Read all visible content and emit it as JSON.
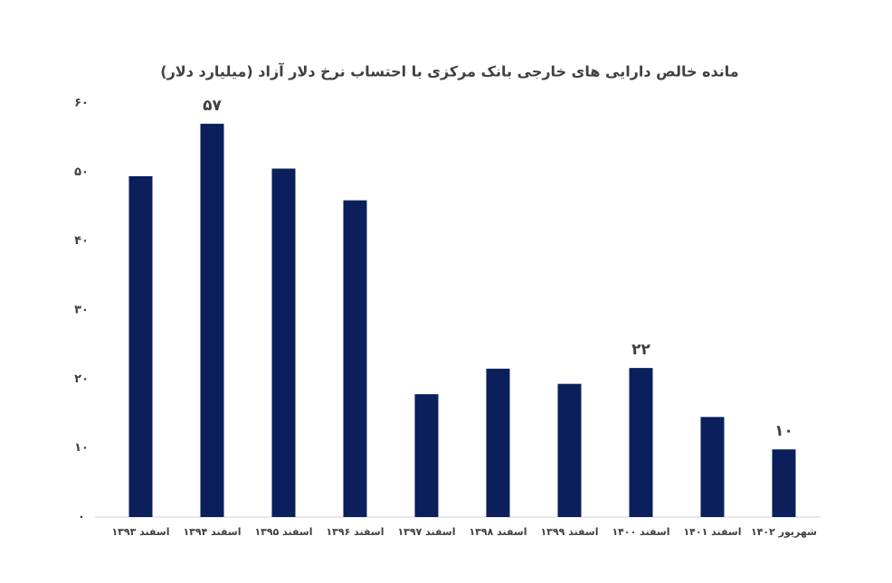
{
  "chart_data": {
    "type": "bar",
    "title": "مانده خالص دارایی های خارجی بانک مرکزی با احتساب نرخ دلار آزاد (میلیارد دلار)",
    "categories": [
      "اسفند ۱۳۹۳",
      "اسفند ۱۳۹۴",
      "اسفند ۱۳۹۵",
      "اسفند ۱۳۹۶",
      "اسفند ۱۳۹۷",
      "اسفند ۱۳۹۸",
      "اسفند ۱۳۹۹",
      "اسفند ۱۴۰۰",
      "اسفند ۱۴۰۱",
      "شهریور ۱۴۰۲"
    ],
    "values": [
      49.4,
      57,
      50.5,
      45.9,
      17.8,
      21.5,
      19.3,
      21.6,
      14.5,
      9.8
    ],
    "value_labels": [
      null,
      "۵۷",
      null,
      null,
      null,
      null,
      null,
      "۲۲",
      null,
      "۱۰"
    ],
    "color": "#0a1f5c",
    "ylim": [
      0,
      60
    ],
    "yticks": [
      {
        "value": 0,
        "label": "۰"
      },
      {
        "value": 10,
        "label": "۱۰"
      },
      {
        "value": 20,
        "label": "۲۰"
      },
      {
        "value": 30,
        "label": "۳۰"
      },
      {
        "value": 40,
        "label": "۴۰"
      },
      {
        "value": 50,
        "label": "۵۰"
      },
      {
        "value": 60,
        "label": "۶۰"
      }
    ],
    "grid": false
  }
}
